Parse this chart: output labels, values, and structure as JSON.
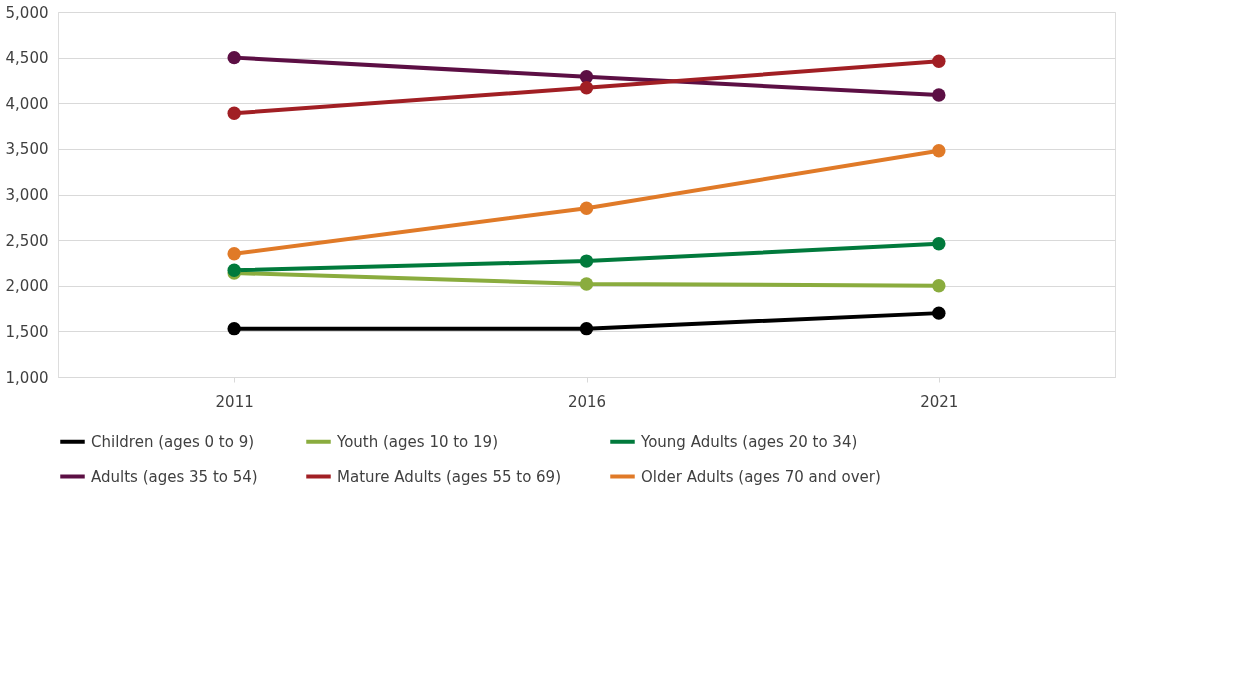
{
  "chart_data": {
    "type": "line",
    "categories": [
      "2011",
      "2016",
      "2021"
    ],
    "series": [
      {
        "name": "Children (ages 0 to 9)",
        "color": "#000000",
        "values": [
          1530,
          1530,
          1700
        ]
      },
      {
        "name": "Youth (ages 10 to 19)",
        "color": "#8aac3e",
        "values": [
          2140,
          2020,
          2000
        ]
      },
      {
        "name": "Young Adults (ages 20 to 34)",
        "color": "#017a3c",
        "values": [
          2170,
          2270,
          2460
        ]
      },
      {
        "name": "Adults (ages 35 to 54)",
        "color": "#5c0f44",
        "values": [
          4500,
          4290,
          4090
        ]
      },
      {
        "name": "Mature Adults (ages 55 to 69)",
        "color": "#a11f24",
        "values": [
          3890,
          4170,
          4460
        ]
      },
      {
        "name": "Older Adults (ages 70 and over)",
        "color": "#e07a28",
        "values": [
          2350,
          2850,
          3480
        ]
      }
    ],
    "ylim": [
      1000,
      5000
    ],
    "yticks": [
      {
        "value": 1000,
        "label": "1,000"
      },
      {
        "value": 1500,
        "label": "1,500"
      },
      {
        "value": 2000,
        "label": "2,000"
      },
      {
        "value": 2500,
        "label": "2,500"
      },
      {
        "value": 3000,
        "label": "3,000"
      },
      {
        "value": 3500,
        "label": "3,500"
      },
      {
        "value": 4000,
        "label": "4,000"
      },
      {
        "value": 4500,
        "label": "4,500"
      },
      {
        "value": 5000,
        "label": "5,000"
      }
    ],
    "grid": "y",
    "legend": "bottom",
    "marker": "circle",
    "line_style": "solid"
  }
}
